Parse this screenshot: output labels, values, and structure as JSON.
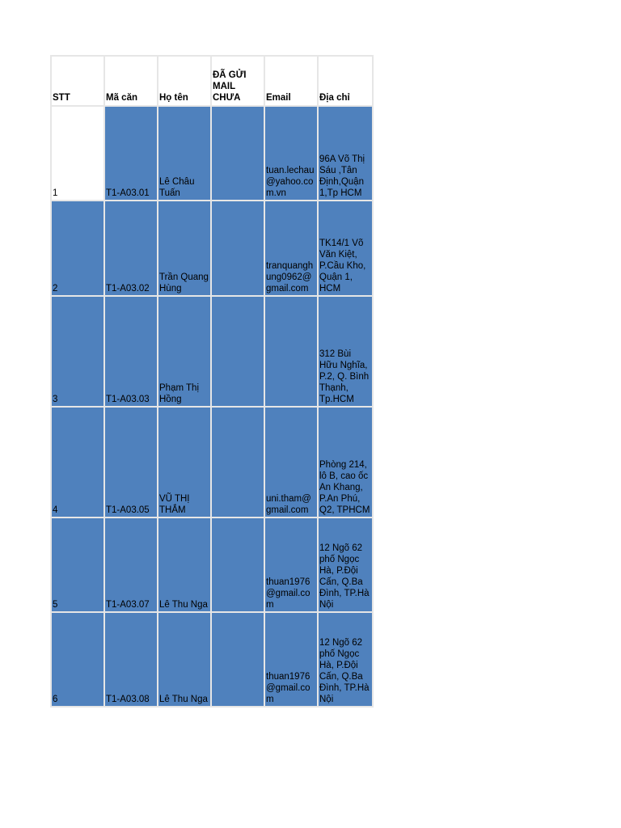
{
  "headers": [
    "STT",
    "Mã căn",
    "Họ tên",
    "ĐÃ GỬI MAIL CHƯA",
    "Email",
    "Địa chỉ"
  ],
  "rows": [
    {
      "stt": "1",
      "ma_can": "T1-A03.01",
      "ho_ten": "Lê Châu Tuấn",
      "da_gui": "",
      "email": "tuan.lechau@yahoo.com.vn",
      "dia_chi": "96A Võ Thị Sáu ,Tân Định,Quận 1,Tp HCM"
    },
    {
      "stt": "2",
      "ma_can": "T1-A03.02",
      "ho_ten": "Trần Quang Hùng",
      "da_gui": "",
      "email": "tranquanghung0962@gmail.com",
      "dia_chi": "TK14/1 Võ Văn Kiệt, P.Cầu Kho, Quận 1, HCM"
    },
    {
      "stt": "3",
      "ma_can": "T1-A03.03",
      "ho_ten": "Phạm Thị Hồng",
      "da_gui": "",
      "email": "",
      "dia_chi": "312 Bùi Hữu Nghĩa, P.2, Q. Bình Thạnh, Tp.HCM"
    },
    {
      "stt": "4",
      "ma_can": "T1-A03.05",
      "ho_ten": "VŨ THỊ THẮM",
      "da_gui": "",
      "email": "uni.tham@gmail.com",
      "dia_chi": "Phòng 214, lô B, cao ốc An Khang, P.An Phú, Q2, TPHCM"
    },
    {
      "stt": "5",
      "ma_can": "T1-A03.07",
      "ho_ten": "Lê Thu Nga",
      "da_gui": "",
      "email": "thuan1976@gmail.com",
      "dia_chi": "12 Ngõ 62 phố Ngọc Hà, P.Đội Cấn, Q.Ba Đình, TP.Hà Nội"
    },
    {
      "stt": "6",
      "ma_can": "T1-A03.08",
      "ho_ten": "Lê Thu Nga",
      "da_gui": "",
      "email": "thuan1976@gmail.com",
      "dia_chi": "12 Ngõ 62 phố Ngọc Hà, P.Đội Cấn, Q.Ba Đình, TP.Hà Nội"
    }
  ],
  "colors": {
    "fill": "#4f81bd",
    "border": "#e6e6e6"
  }
}
